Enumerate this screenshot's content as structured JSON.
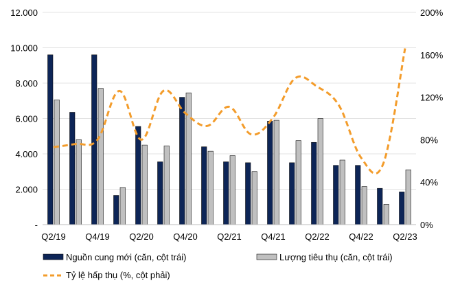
{
  "chart_data": {
    "type": "bar",
    "categories": [
      "Q2/19",
      "Q3/19",
      "Q4/19",
      "Q1/20",
      "Q2/20",
      "Q3/20",
      "Q4/20",
      "Q1/21",
      "Q2/21",
      "Q3/21",
      "Q4/21",
      "Q1/22",
      "Q2/22",
      "Q3/22",
      "Q4/22",
      "Q1/23",
      "Q2/23"
    ],
    "x_tick_labels": [
      "Q2/19",
      "Q4/19",
      "Q2/20",
      "Q4/20",
      "Q2/21",
      "Q4/21",
      "Q2/22",
      "Q4/22",
      "Q2/23"
    ],
    "series": [
      {
        "name": "Nguồn cung mới (căn, cột trái)",
        "type": "bar",
        "axis": "left",
        "color": "#0d2557",
        "values": [
          9600,
          6350,
          9600,
          1650,
          5550,
          3550,
          7200,
          4400,
          3550,
          3500,
          5850,
          3500,
          4650,
          3350,
          3350,
          2050,
          1850
        ]
      },
      {
        "name": "Lượng tiêu thụ (căn, cột trái)",
        "type": "bar",
        "axis": "left",
        "color": "#c0c0c0",
        "values": [
          7050,
          4800,
          7700,
          2100,
          4500,
          4450,
          7450,
          4150,
          3900,
          3000,
          5900,
          4750,
          6000,
          3650,
          2150,
          1150,
          3100
        ]
      },
      {
        "name": "Tỷ lệ hấp thụ (%, cột phải)",
        "type": "line",
        "axis": "right",
        "color": "#f39c2b",
        "dash": true,
        "values": [
          73,
          76,
          80,
          126,
          80,
          126,
          105,
          93,
          111,
          85,
          101,
          138,
          130,
          112,
          63,
          57,
          166
        ]
      }
    ],
    "left_axis": {
      "min": 0,
      "max": 12000,
      "ticks": [
        "-",
        "2.000",
        "4.000",
        "6.000",
        "8.000",
        "10.000",
        "12.000"
      ]
    },
    "right_axis": {
      "min": 0,
      "max": 200,
      "ticks": [
        "0%",
        "40%",
        "80%",
        "120%",
        "160%",
        "200%"
      ]
    },
    "legend_position": "bottom"
  }
}
